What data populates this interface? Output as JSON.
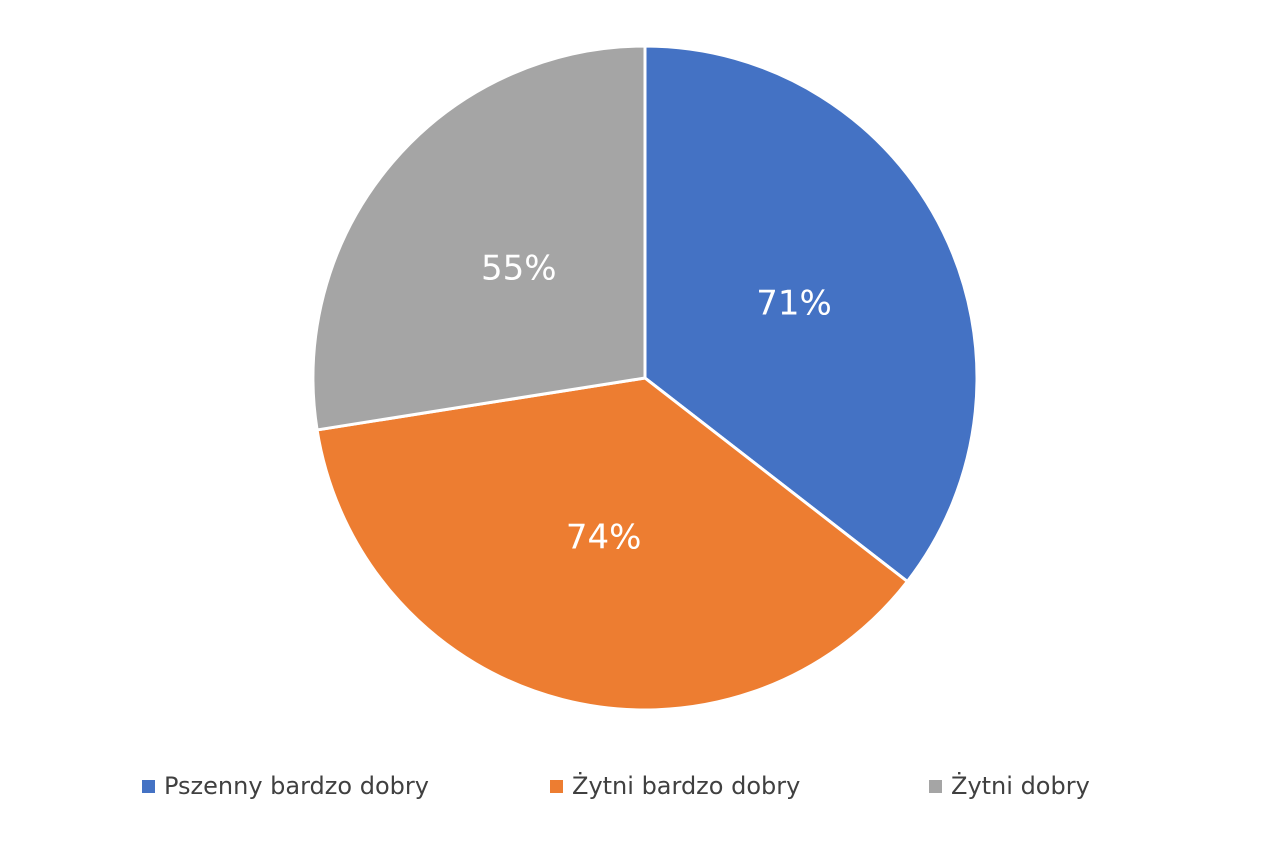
{
  "chart_data": {
    "type": "pie",
    "categories": [
      "Pszenny bardzo dobry",
      "Żytni bardzo dobry",
      "Żytni dobry"
    ],
    "values": [
      71,
      74,
      55
    ],
    "value_labels": [
      "71%",
      "74%",
      "55%"
    ],
    "colors": [
      "#4472c4",
      "#ed7d31",
      "#a5a5a5"
    ],
    "legend": "bottom"
  }
}
